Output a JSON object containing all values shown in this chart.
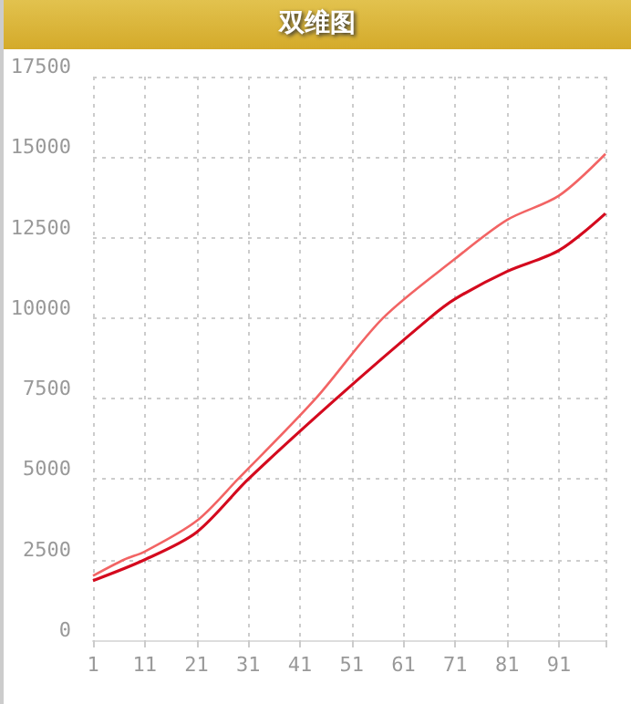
{
  "chart_data": {
    "type": "line",
    "title": "双维图",
    "series": [
      {
        "color": "#f26464",
        "x": [
          1,
          7,
          11,
          21,
          29,
          44,
          57,
          71,
          81,
          91,
          100
        ],
        "values": [
          2000,
          2500,
          2750,
          3700,
          5000,
          7500,
          10000,
          11850,
          13050,
          13800,
          15100
        ]
      },
      {
        "color": "#d40a1e",
        "x": [
          1,
          11,
          21,
          31,
          48,
          66,
          71,
          81,
          91,
          100
        ],
        "values": [
          1850,
          2500,
          3350,
          5000,
          7500,
          10000,
          10600,
          11450,
          12100,
          13250
        ]
      }
    ],
    "xlim": [
      1,
      100
    ],
    "xticks": [
      1,
      11,
      21,
      31,
      41,
      51,
      61,
      71,
      81,
      91,
      {
        "value": 100,
        "label": null
      }
    ],
    "ylim": [
      0,
      17500
    ],
    "yticks": [
      0,
      2500,
      5000,
      7500,
      10000,
      12500,
      15000,
      17500
    ],
    "grid": true,
    "marker": "none",
    "line_style": "solid"
  }
}
